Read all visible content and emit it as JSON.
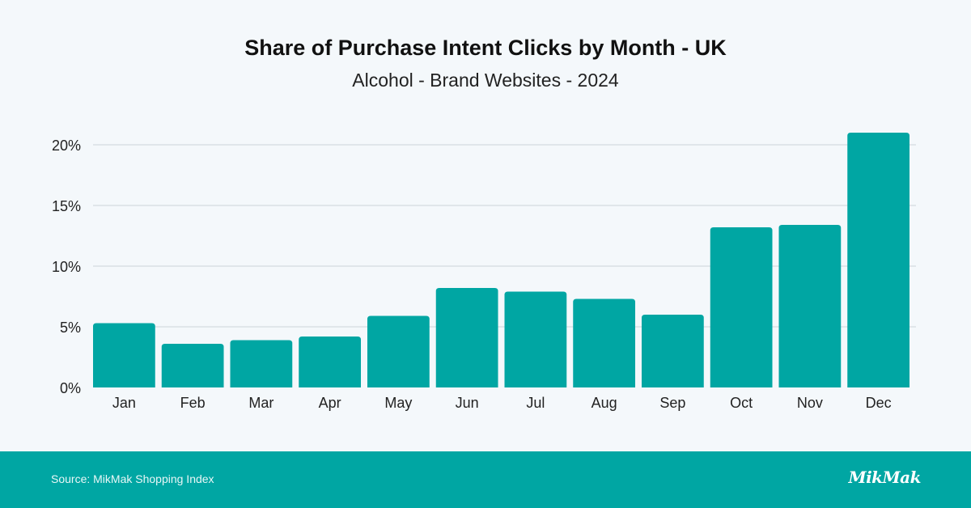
{
  "chart_data": {
    "type": "bar",
    "title": "Share of Purchase Intent Clicks by Month - UK",
    "subtitle": "Alcohol - Brand Websites - 2024",
    "xlabel": "",
    "ylabel": "",
    "categories": [
      "Jan",
      "Feb",
      "Mar",
      "Apr",
      "May",
      "Jun",
      "Jul",
      "Aug",
      "Sep",
      "Oct",
      "Nov",
      "Dec"
    ],
    "values": [
      5.3,
      3.6,
      3.9,
      4.2,
      5.9,
      8.2,
      7.9,
      7.3,
      6.0,
      13.2,
      13.4,
      21.0
    ],
    "value_unit": "%",
    "ylim": [
      0,
      21.5
    ],
    "yticks": [
      0,
      5,
      10,
      15,
      20
    ],
    "ytick_labels": [
      "0%",
      "5%",
      "10%",
      "15%",
      "20%"
    ],
    "grid": true,
    "legend": "none",
    "bar_color": "#00a6a3"
  },
  "footer": {
    "source": "Source: MikMak Shopping Index",
    "logo": "MikMak"
  },
  "colors": {
    "background": "#f4f8fb",
    "accent": "#00a6a3",
    "gridline": "#cdd3d8"
  }
}
